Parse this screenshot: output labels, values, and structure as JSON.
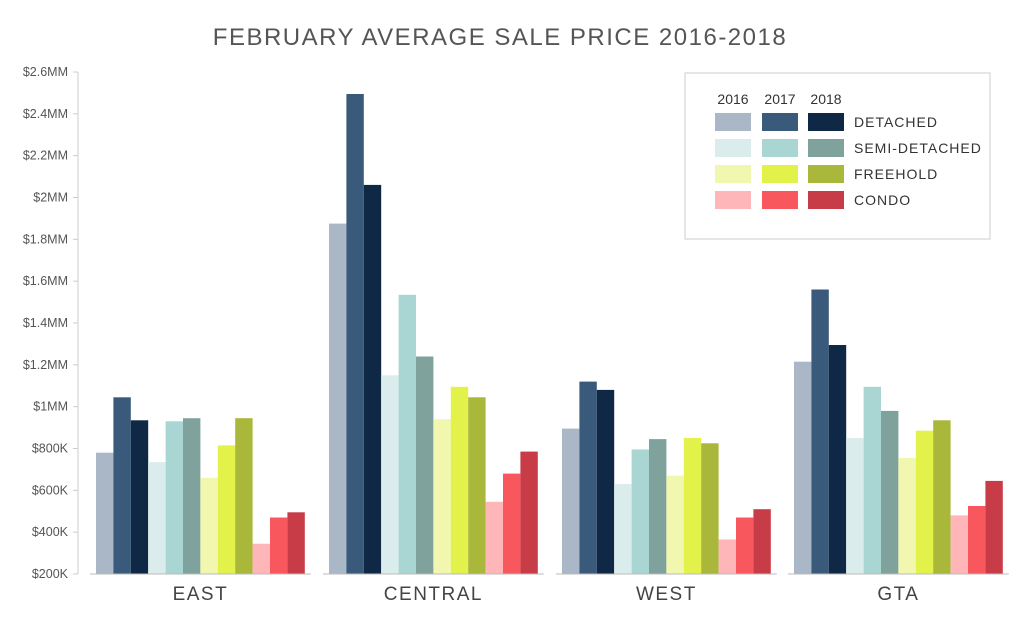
{
  "chart_data": {
    "type": "bar",
    "title": "FEBRUARY AVERAGE SALE PRICE 2016-2018",
    "categories": [
      "EAST",
      "CENTRAL",
      "WEST",
      "GTA"
    ],
    "yticks": [
      "$200K",
      "$400K",
      "$600K",
      "$800K",
      "$1MM",
      "$1.2MM",
      "$1.4MM",
      "$1.6MM",
      "$1.8MM",
      "$2MM",
      "$2.2MM",
      "$2.4MM",
      "$2.6MM"
    ],
    "ylim": [
      200000,
      2600000
    ],
    "grid": false,
    "legend_position": "top-right",
    "legend_years": [
      "2016",
      "2017",
      "2018"
    ],
    "groups": [
      {
        "name": "DETACHED",
        "colors": [
          "#a9b7c6",
          "#3a5a7c",
          "#0f2845"
        ]
      },
      {
        "name": "SEMI-DETACHED",
        "colors": [
          "#dbecec",
          "#a9d6d3",
          "#7fa39c"
        ]
      },
      {
        "name": "FREEHOLD",
        "colors": [
          "#f2f7b0",
          "#e3f24a",
          "#a9b73a"
        ]
      },
      {
        "name": "CONDO",
        "colors": [
          "#ffb6b9",
          "#f8575e",
          "#c83c48"
        ]
      }
    ],
    "series": [
      {
        "type": "DETACHED",
        "year": "2016",
        "values": [
          780000,
          1875000,
          895000,
          1215000
        ]
      },
      {
        "type": "DETACHED",
        "year": "2017",
        "values": [
          1045000,
          2495000,
          1120000,
          1560000
        ]
      },
      {
        "type": "DETACHED",
        "year": "2018",
        "values": [
          935000,
          2060000,
          1080000,
          1295000
        ]
      },
      {
        "type": "SEMI-DETACHED",
        "year": "2016",
        "values": [
          735000,
          1150000,
          630000,
          850000
        ]
      },
      {
        "type": "SEMI-DETACHED",
        "year": "2017",
        "values": [
          930000,
          1535000,
          795000,
          1095000
        ]
      },
      {
        "type": "SEMI-DETACHED",
        "year": "2018",
        "values": [
          945000,
          1240000,
          845000,
          980000
        ]
      },
      {
        "type": "FREEHOLD",
        "year": "2016",
        "values": [
          660000,
          940000,
          670000,
          755000
        ]
      },
      {
        "type": "FREEHOLD",
        "year": "2017",
        "values": [
          815000,
          1095000,
          850000,
          885000
        ]
      },
      {
        "type": "FREEHOLD",
        "year": "2018",
        "values": [
          945000,
          1045000,
          825000,
          935000
        ]
      },
      {
        "type": "CONDO",
        "year": "2016",
        "values": [
          345000,
          545000,
          365000,
          480000
        ]
      },
      {
        "type": "CONDO",
        "year": "2017",
        "values": [
          470000,
          680000,
          470000,
          525000
        ]
      },
      {
        "type": "CONDO",
        "year": "2018",
        "values": [
          495000,
          785000,
          510000,
          645000
        ]
      }
    ]
  }
}
